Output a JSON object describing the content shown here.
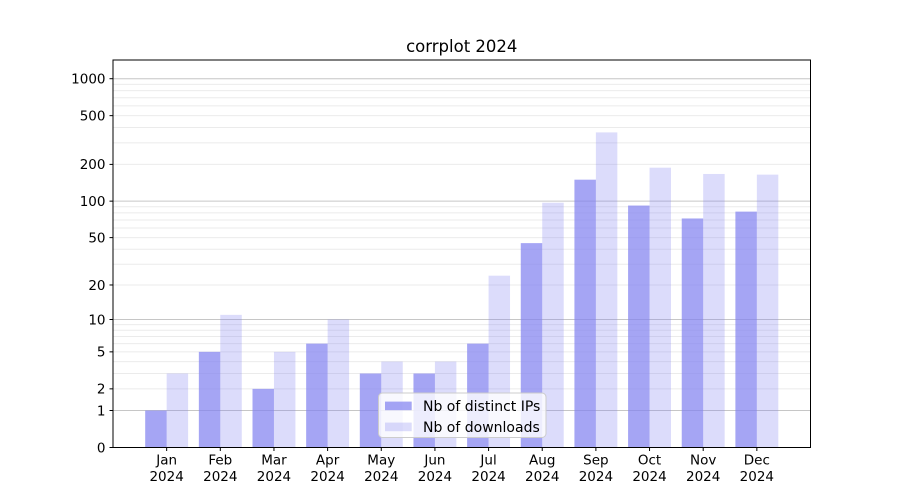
{
  "title": "corrplot 2024",
  "chart_data": {
    "type": "bar",
    "title": "corrplot 2024",
    "categories": [
      "Jan 2024",
      "Feb 2024",
      "Mar 2024",
      "Apr 2024",
      "May 2024",
      "Jun 2024",
      "Jul 2024",
      "Aug 2024",
      "Sep 2024",
      "Oct 2024",
      "Nov 2024",
      "Dec 2024"
    ],
    "x_tick_top_labels": [
      "Jan",
      "Feb",
      "Mar",
      "Apr",
      "May",
      "Jun",
      "Jul",
      "Aug",
      "Sep",
      "Oct",
      "Nov",
      "Dec"
    ],
    "x_tick_bottom_label": "2024",
    "series": [
      {
        "name": "Nb of distinct IPs",
        "values": [
          1,
          5,
          2,
          6,
          3,
          3,
          6,
          45,
          150,
          92,
          72,
          82
        ]
      },
      {
        "name": "Nb of downloads",
        "values": [
          3,
          11,
          5,
          10,
          4,
          4,
          24,
          97,
          365,
          188,
          167,
          165
        ]
      }
    ],
    "y_scale": "log1p",
    "y_ticks": [
      0,
      1,
      2,
      5,
      10,
      20,
      50,
      100,
      200,
      500,
      1000
    ],
    "y_grid_major": [
      1,
      10,
      100,
      1000
    ],
    "y_grid_minor": [
      2,
      3,
      4,
      5,
      6,
      7,
      8,
      9,
      20,
      30,
      40,
      50,
      60,
      70,
      80,
      90,
      200,
      300,
      400,
      500,
      600,
      700,
      800,
      900
    ],
    "ylim": [
      0,
      1420
    ],
    "grid": true,
    "legend_position": "lower center",
    "colors": {
      "bar_base": "#8282f0",
      "series_alpha": [
        0.72,
        0.28
      ],
      "grid_major": "#c6c6c6",
      "grid_minor": "#ebebeb",
      "axis_line": "#000000",
      "legend_border": "#cccccc",
      "legend_bg": "rgba(255,255,255,0.8)"
    }
  }
}
